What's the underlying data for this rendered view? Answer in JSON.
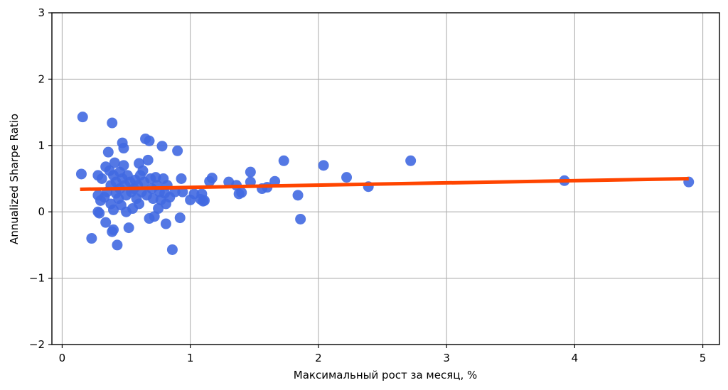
{
  "chart_data": {
    "type": "scatter",
    "title": "",
    "xlabel": "Максимальный рост за месяц, %",
    "ylabel": "Annualized Sharpe Ratio",
    "xlim": [
      -0.08,
      5.13
    ],
    "ylim": [
      -2,
      3
    ],
    "xticks": [
      0,
      1,
      2,
      3,
      4,
      5
    ],
    "xtick_labels": [
      "0",
      "1",
      "2",
      "3",
      "4",
      "5"
    ],
    "yticks": [
      -2,
      -1,
      0,
      1,
      2,
      3
    ],
    "ytick_labels": [
      "−2",
      "−1",
      "0",
      "1",
      "2",
      "3"
    ],
    "grid": true,
    "legend": null,
    "colors": {
      "points": "#4169e1",
      "regression_line": "#ff4500",
      "grid": "#b0b0b0",
      "axes": "#000000"
    },
    "series": [
      {
        "name": "strategies",
        "kind": "scatter",
        "points": [
          [
            0.16,
            1.43
          ],
          [
            0.15,
            0.57
          ],
          [
            0.23,
            -0.4
          ],
          [
            0.28,
            0.55
          ],
          [
            0.28,
            0.25
          ],
          [
            0.28,
            0.0
          ],
          [
            0.29,
            -0.02
          ],
          [
            0.3,
            0.17
          ],
          [
            0.31,
            0.5
          ],
          [
            0.33,
            0.22
          ],
          [
            0.34,
            0.68
          ],
          [
            0.34,
            -0.16
          ],
          [
            0.35,
            0.3
          ],
          [
            0.36,
            0.9
          ],
          [
            0.37,
            0.62
          ],
          [
            0.38,
            0.4
          ],
          [
            0.38,
            0.12
          ],
          [
            0.39,
            -0.3
          ],
          [
            0.39,
            1.34
          ],
          [
            0.4,
            0.55
          ],
          [
            0.4,
            0.03
          ],
          [
            0.4,
            -0.27
          ],
          [
            0.41,
            0.74
          ],
          [
            0.42,
            0.45
          ],
          [
            0.42,
            0.28
          ],
          [
            0.43,
            -0.5
          ],
          [
            0.44,
            0.2
          ],
          [
            0.45,
            0.6
          ],
          [
            0.45,
            0.35
          ],
          [
            0.46,
            0.1
          ],
          [
            0.47,
            1.04
          ],
          [
            0.47,
            0.5
          ],
          [
            0.48,
            0.96
          ],
          [
            0.48,
            0.7
          ],
          [
            0.49,
            0.4
          ],
          [
            0.5,
            0.25
          ],
          [
            0.5,
            0.0
          ],
          [
            0.51,
            0.55
          ],
          [
            0.52,
            -0.24
          ],
          [
            0.53,
            0.45
          ],
          [
            0.54,
            0.3
          ],
          [
            0.55,
            0.05
          ],
          [
            0.56,
            0.35
          ],
          [
            0.57,
            0.48
          ],
          [
            0.58,
            0.2
          ],
          [
            0.59,
            0.4
          ],
          [
            0.6,
            0.73
          ],
          [
            0.6,
            0.12
          ],
          [
            0.61,
            0.55
          ],
          [
            0.62,
            0.3
          ],
          [
            0.63,
            0.62
          ],
          [
            0.64,
            0.45
          ],
          [
            0.65,
            1.1
          ],
          [
            0.66,
            0.25
          ],
          [
            0.67,
            0.78
          ],
          [
            0.68,
            1.07
          ],
          [
            0.68,
            -0.1
          ],
          [
            0.69,
            0.5
          ],
          [
            0.7,
            0.35
          ],
          [
            0.71,
            0.2
          ],
          [
            0.72,
            -0.07
          ],
          [
            0.73,
            0.52
          ],
          [
            0.74,
            0.4
          ],
          [
            0.75,
            0.05
          ],
          [
            0.76,
            0.3
          ],
          [
            0.77,
            0.18
          ],
          [
            0.78,
            0.99
          ],
          [
            0.79,
            0.5
          ],
          [
            0.8,
            0.28
          ],
          [
            0.81,
            0.12
          ],
          [
            0.81,
            -0.18
          ],
          [
            0.82,
            0.4
          ],
          [
            0.84,
            0.22
          ],
          [
            0.86,
            -0.57
          ],
          [
            0.88,
            0.3
          ],
          [
            0.9,
            0.92
          ],
          [
            0.92,
            -0.09
          ],
          [
            0.93,
            0.5
          ],
          [
            0.94,
            0.3
          ],
          [
            1.0,
            0.18
          ],
          [
            1.03,
            0.27
          ],
          [
            1.08,
            0.19
          ],
          [
            1.09,
            0.27
          ],
          [
            1.1,
            0.16
          ],
          [
            1.11,
            0.17
          ],
          [
            1.15,
            0.46
          ],
          [
            1.17,
            0.51
          ],
          [
            1.3,
            0.45
          ],
          [
            1.36,
            0.4
          ],
          [
            1.38,
            0.27
          ],
          [
            1.4,
            0.29
          ],
          [
            1.47,
            0.6
          ],
          [
            1.47,
            0.45
          ],
          [
            1.56,
            0.35
          ],
          [
            1.6,
            0.37
          ],
          [
            1.66,
            0.46
          ],
          [
            1.73,
            0.77
          ],
          [
            1.84,
            0.25
          ],
          [
            1.86,
            -0.11
          ],
          [
            2.04,
            0.7
          ],
          [
            2.22,
            0.52
          ],
          [
            2.39,
            0.38
          ],
          [
            2.72,
            0.77
          ],
          [
            3.92,
            0.47
          ],
          [
            4.89,
            0.45
          ]
        ]
      },
      {
        "name": "regression",
        "kind": "line",
        "x": [
          0.14,
          4.89
        ],
        "y": [
          0.34,
          0.5
        ]
      }
    ]
  }
}
